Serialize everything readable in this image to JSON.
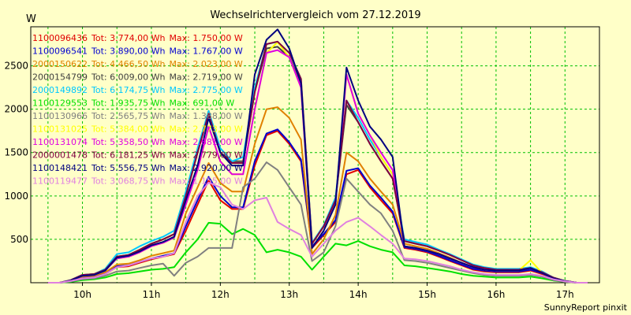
{
  "chart_data": {
    "type": "line",
    "title": "Wechselrichtervergleich vom 27.12.2019",
    "ylabel": "W",
    "xlabel": "",
    "footer": "SunnyReport pinxit",
    "ylim": [
      0,
      2950
    ],
    "xlim": [
      9.25,
      17.5
    ],
    "grid": true,
    "legend_position": "top-left",
    "yticks": [
      500,
      1000,
      1500,
      2000,
      2500
    ],
    "xticks": [
      10,
      11,
      12,
      13,
      14,
      15,
      16,
      17
    ],
    "xtick_labels": [
      "10h",
      "11h",
      "12h",
      "13h",
      "14h",
      "15h",
      "16h",
      "17h"
    ],
    "x": [
      9.5,
      9.67,
      9.83,
      10.0,
      10.17,
      10.33,
      10.5,
      10.67,
      10.83,
      11.0,
      11.17,
      11.33,
      11.5,
      11.67,
      11.83,
      12.0,
      12.17,
      12.33,
      12.5,
      12.67,
      12.83,
      13.0,
      13.17,
      13.33,
      13.5,
      13.67,
      13.83,
      14.0,
      14.17,
      14.33,
      14.5,
      14.67,
      14.83,
      15.0,
      15.17,
      15.33,
      15.5,
      15.67,
      15.83,
      16.0,
      16.17,
      16.33,
      16.5,
      16.67,
      16.83,
      17.0,
      17.17,
      17.33
    ],
    "series": [
      {
        "name": "1100096436",
        "tot": "Tot: 3.774,00 Wh",
        "max": "Max: 1.750,00 W",
        "color": "#e00000",
        "values": [
          0,
          0,
          20,
          60,
          70,
          100,
          180,
          190,
          230,
          270,
          300,
          330,
          600,
          900,
          1180,
          950,
          850,
          850,
          1350,
          1700,
          1750,
          1600,
          1400,
          400,
          550,
          700,
          1250,
          1300,
          1100,
          950,
          800,
          400,
          380,
          350,
          300,
          250,
          200,
          150,
          130,
          120,
          120,
          120,
          140,
          100,
          50,
          20,
          0,
          0
        ]
      },
      {
        "name": "1100096541",
        "tot": "Tot: 3.890,00 Wh",
        "max": "Max: 1.767,00 W",
        "color": "#0000d0",
        "values": [
          0,
          0,
          20,
          60,
          70,
          110,
          190,
          200,
          240,
          280,
          310,
          340,
          650,
          950,
          1220,
          1000,
          870,
          870,
          1400,
          1720,
          1767,
          1620,
          1420,
          420,
          560,
          720,
          1290,
          1320,
          1120,
          980,
          820,
          410,
          390,
          360,
          310,
          260,
          210,
          160,
          140,
          130,
          130,
          130,
          150,
          110,
          55,
          20,
          0,
          0
        ]
      },
      {
        "name": "2000150622",
        "tot": "Tot: 4.466,50 Wh",
        "max": "Max: 2.023,00 W",
        "color": "#e08000",
        "values": [
          0,
          0,
          25,
          70,
          80,
          120,
          210,
          220,
          260,
          310,
          340,
          370,
          800,
          1100,
          1380,
          1150,
          1050,
          1050,
          1600,
          2000,
          2023,
          1900,
          1650,
          330,
          500,
          780,
          1500,
          1400,
          1200,
          1050,
          900,
          450,
          420,
          390,
          340,
          290,
          230,
          180,
          150,
          140,
          140,
          140,
          170,
          120,
          60,
          20,
          0,
          0
        ]
      },
      {
        "name": "2000154799",
        "tot": "Tot: 6.009,00 Wh",
        "max": "Max: 2.719,00 W",
        "color": "#404040",
        "values": [
          0,
          0,
          30,
          90,
          100,
          150,
          300,
          320,
          380,
          450,
          500,
          560,
          1000,
          1500,
          1980,
          1500,
          1400,
          1400,
          2200,
          2700,
          2719,
          2600,
          2300,
          450,
          650,
          950,
          2050,
          1850,
          1600,
          1400,
          1200,
          480,
          450,
          420,
          370,
          320,
          260,
          200,
          170,
          150,
          150,
          150,
          170,
          120,
          60,
          20,
          0,
          0
        ]
      },
      {
        "name": "2000149892",
        "tot": "Tot: 6.174,75 Wh",
        "max": "Max: 2.775,00 W",
        "color": "#00c8ff",
        "values": [
          0,
          0,
          30,
          90,
          100,
          160,
          330,
          350,
          420,
          480,
          530,
          600,
          1050,
          1550,
          1980,
          1550,
          1400,
          1450,
          2250,
          2750,
          2775,
          2650,
          2350,
          460,
          660,
          980,
          2100,
          1900,
          1650,
          1450,
          1250,
          500,
          470,
          440,
          380,
          330,
          270,
          210,
          180,
          160,
          160,
          160,
          180,
          130,
          60,
          20,
          0,
          0
        ]
      },
      {
        "name": "1100129553",
        "tot": "Tot: 1.935,75 Wh",
        "max": "Max: 691,00 W",
        "color": "#00e000",
        "values": [
          0,
          0,
          10,
          30,
          40,
          60,
          100,
          110,
          130,
          150,
          160,
          180,
          350,
          500,
          691,
          680,
          560,
          620,
          550,
          350,
          380,
          350,
          300,
          150,
          300,
          450,
          430,
          480,
          420,
          380,
          350,
          200,
          190,
          170,
          150,
          130,
          100,
          80,
          70,
          60,
          60,
          60,
          70,
          50,
          25,
          10,
          0,
          0
        ]
      },
      {
        "name": "1100130966",
        "tot": "Tot: 2.565,75 Wh",
        "max": "Max: 1.388,00 W",
        "color": "#808080",
        "values": [
          0,
          0,
          15,
          40,
          50,
          80,
          130,
          140,
          170,
          200,
          220,
          80,
          230,
          300,
          400,
          400,
          400,
          1100,
          1200,
          1388,
          1300,
          1100,
          900,
          250,
          350,
          650,
          1200,
          1050,
          900,
          800,
          600,
          260,
          250,
          230,
          200,
          170,
          140,
          110,
          90,
          80,
          80,
          80,
          90,
          70,
          30,
          10,
          0,
          0
        ]
      },
      {
        "name": "1100131025",
        "tot": "Tot: 5.384,00 Wh",
        "max": "Max: 2.773,00 W",
        "color": "#ffff00",
        "values": [
          0,
          0,
          25,
          80,
          90,
          140,
          280,
          300,
          350,
          420,
          460,
          520,
          900,
          1300,
          1800,
          1400,
          1250,
          1250,
          2000,
          2650,
          2773,
          2600,
          2250,
          400,
          600,
          900,
          2400,
          1950,
          1700,
          1450,
          1250,
          420,
          400,
          370,
          330,
          280,
          230,
          180,
          150,
          140,
          140,
          140,
          260,
          110,
          50,
          20,
          0,
          0
        ]
      },
      {
        "name": "1100131074",
        "tot": "Tot: 5.358,50 Wh",
        "max": "Max: 2.681,00 W",
        "color": "#e000e0",
        "values": [
          0,
          0,
          25,
          80,
          90,
          140,
          280,
          300,
          350,
          420,
          460,
          520,
          900,
          1300,
          1800,
          1400,
          1250,
          1250,
          2000,
          2650,
          2681,
          2600,
          2250,
          400,
          600,
          900,
          2400,
          1950,
          1700,
          1500,
          1300,
          420,
          400,
          370,
          330,
          280,
          230,
          180,
          150,
          140,
          140,
          140,
          170,
          110,
          50,
          20,
          0,
          0
        ]
      },
      {
        "name": "2000001478",
        "tot": "Tot: 6.181,25 Wh",
        "max": "Max: 2.779,00 W",
        "color": "#800040",
        "values": [
          0,
          0,
          30,
          90,
          100,
          150,
          300,
          320,
          380,
          450,
          500,
          560,
          1000,
          1500,
          1950,
          1500,
          1380,
          1380,
          2200,
          2750,
          2779,
          2650,
          2350,
          450,
          650,
          950,
          2100,
          1850,
          1600,
          1400,
          1200,
          480,
          450,
          420,
          370,
          320,
          260,
          200,
          170,
          150,
          150,
          150,
          170,
          120,
          60,
          20,
          0,
          0
        ]
      },
      {
        "name": "1100148421",
        "tot": "Tot: 5.556,75 Wh",
        "max": "Max: 2.920,00 W",
        "color": "#000080",
        "values": [
          0,
          0,
          25,
          80,
          90,
          140,
          290,
          310,
          360,
          430,
          470,
          530,
          950,
          1350,
          1900,
          1500,
          1350,
          1350,
          2400,
          2800,
          2920,
          2700,
          2300,
          400,
          600,
          900,
          2480,
          2100,
          1800,
          1650,
          1450,
          420,
          400,
          370,
          330,
          280,
          230,
          180,
          150,
          140,
          140,
          140,
          170,
          110,
          50,
          20,
          0,
          0
        ]
      },
      {
        "name": "1100119477",
        "tot": "Tot: 3.068,75 Wh",
        "max": "Max: 1.155,00 W",
        "color": "#e080e0",
        "values": [
          0,
          0,
          20,
          50,
          60,
          100,
          180,
          200,
          240,
          280,
          300,
          340,
          700,
          1000,
          1155,
          1100,
          900,
          850,
          950,
          980,
          700,
          620,
          550,
          300,
          450,
          600,
          700,
          750,
          650,
          550,
          450,
          280,
          270,
          250,
          220,
          190,
          150,
          120,
          100,
          90,
          90,
          90,
          100,
          80,
          40,
          15,
          0,
          0
        ]
      }
    ]
  }
}
